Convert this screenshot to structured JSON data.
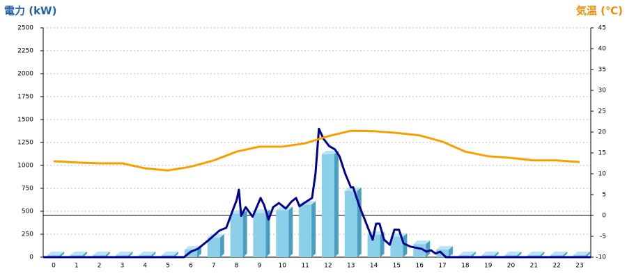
{
  "chart_data": {
    "type": "bar",
    "y_label": "電力 (kW)",
    "y2_label": "気温 (℃)",
    "categories": [
      "0",
      "1",
      "2",
      "3",
      "4",
      "5",
      "6",
      "7",
      "8",
      "9",
      "10",
      "11",
      "12",
      "13",
      "14",
      "15",
      "16",
      "17",
      "18",
      "19",
      "20",
      "21",
      "22",
      "23"
    ],
    "ylim": [
      0,
      2500
    ],
    "yticks": [
      0,
      250,
      500,
      750,
      1000,
      1250,
      1500,
      1750,
      2000,
      2250,
      2500
    ],
    "y2lim": [
      -10,
      45
    ],
    "y2ticks": [
      -10,
      -5,
      0,
      5,
      10,
      15,
      20,
      25,
      30,
      35,
      40,
      45
    ],
    "grid": true,
    "series": [
      {
        "type": "bar",
        "color": "#8ccfe8",
        "values": [
          0,
          0,
          0,
          0,
          0,
          0,
          60,
          190,
          450,
          460,
          490,
          550,
          1100,
          700,
          220,
          200,
          120,
          60,
          0,
          0,
          0,
          0,
          0,
          0
        ]
      },
      {
        "type": "line",
        "color": "#000090",
        "x": [
          -0.45,
          5.7,
          6.0,
          6.3,
          6.8,
          7.25,
          7.55,
          7.8,
          8.0,
          8.1,
          8.2,
          8.4,
          8.7,
          9.05,
          9.2,
          9.4,
          9.6,
          9.85,
          10.15,
          10.4,
          10.6,
          10.75,
          11.05,
          11.3,
          11.45,
          11.6,
          11.8,
          12.05,
          12.3,
          12.5,
          12.75,
          13.0,
          13.1,
          13.35,
          13.65,
          13.95,
          14.1,
          14.25,
          14.45,
          14.7,
          14.9,
          15.1,
          15.3,
          15.6,
          16.1,
          16.3,
          16.5,
          16.7,
          16.9,
          17.15,
          23.5
        ],
        "values": [
          0,
          0,
          60,
          90,
          190,
          290,
          320,
          490,
          620,
          735,
          450,
          545,
          440,
          645,
          570,
          410,
          545,
          590,
          530,
          605,
          645,
          555,
          605,
          645,
          910,
          1400,
          1290,
          1210,
          1175,
          1100,
          910,
          760,
          760,
          570,
          380,
          190,
          365,
          365,
          190,
          135,
          300,
          300,
          150,
          115,
          90,
          60,
          75,
          40,
          60,
          0,
          0
        ]
      },
      {
        "type": "line",
        "axis": "y2",
        "color": "#f5a000",
        "values": [
          13.0,
          12.7,
          12.5,
          12.5,
          11.3,
          10.8,
          11.7,
          13.2,
          15.3,
          16.5,
          16.5,
          17.3,
          19.0,
          20.3,
          20.2,
          19.8,
          19.2,
          17.7,
          15.3,
          14.2,
          13.8,
          13.2,
          13.2,
          12.8
        ]
      }
    ]
  }
}
